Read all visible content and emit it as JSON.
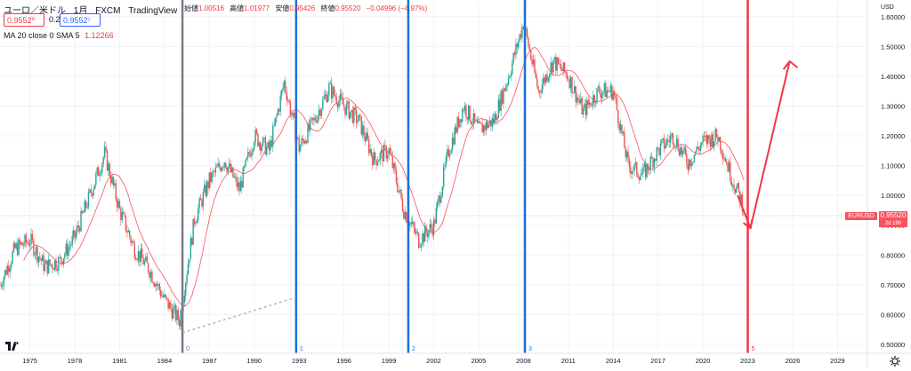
{
  "header": {
    "symbol": "ユーロ／米ドル",
    "interval": "1月",
    "broker": "FXCM",
    "platform": "TradingView",
    "ohlc": [
      {
        "label": "始値",
        "value": "1.00516"
      },
      {
        "label": "高値",
        "value": "1.01977"
      },
      {
        "label": "安値",
        "value": "0.95426"
      },
      {
        "label": "終値",
        "value": "0.95520"
      }
    ],
    "change": "−0.04996 (−4.97%)",
    "sell_price": "0.9552⁰",
    "spread": "0.2",
    "buy_price": "0.9552⁷",
    "indicator_name": "MA 20 close 0 SMA 5",
    "indicator_value": "1.12266"
  },
  "axis": {
    "currency": "USD",
    "y_ticks": [
      "1.60000",
      "1.50000",
      "1.40000",
      "1.30000",
      "1.20000",
      "1.10000",
      "1.00000",
      "0.90000",
      "0.80000",
      "0.70000",
      "0.60000",
      "0.50000"
    ],
    "x_ticks": [
      "1975",
      "1978",
      "1981",
      "1984",
      "1987",
      "1990",
      "1993",
      "1996",
      "1999",
      "2002",
      "2005",
      "2008",
      "2011",
      "2014",
      "2017",
      "2020",
      "2023",
      "2026",
      "2029"
    ]
  },
  "last_price": {
    "symbol": "EURUSD",
    "value": "0.95520",
    "countdown": "2d 19h"
  },
  "markers": [
    {
      "label": "0",
      "year": 1985.2,
      "color": "#787b86"
    },
    {
      "label": "1",
      "year": 1992.8,
      "color": "#1e6fd9"
    },
    {
      "label": "2",
      "year": 2000.3,
      "color": "#1e6fd9"
    },
    {
      "label": "3",
      "year": 2008.1,
      "color": "#1e6fd9"
    },
    {
      "label": "5",
      "year": 2023.0,
      "color": "#f23645"
    }
  ],
  "colors": {
    "up": "#26a69a",
    "down": "#ef5350",
    "ma": "#f7525f",
    "grid": "#f0f3fa",
    "axis_text": "#131722"
  },
  "icons": {
    "logo": "tradingview-logo-icon",
    "settings": "gear-icon"
  },
  "chart_data": {
    "type": "candlestick",
    "x_unit": "year",
    "y_unit": "USD",
    "series": [
      {
        "name": "EURUSD",
        "points": [
          [
            1973.0,
            0.7
          ],
          [
            1974.0,
            0.82
          ],
          [
            1975.0,
            0.85
          ],
          [
            1976.0,
            0.76
          ],
          [
            1977.0,
            0.78
          ],
          [
            1978.0,
            0.86
          ],
          [
            1979.0,
            1.0
          ],
          [
            1980.0,
            1.14
          ],
          [
            1981.0,
            0.95
          ],
          [
            1982.0,
            0.82
          ],
          [
            1983.0,
            0.75
          ],
          [
            1984.0,
            0.65
          ],
          [
            1985.0,
            0.58
          ],
          [
            1986.0,
            0.92
          ],
          [
            1987.0,
            1.05
          ],
          [
            1988.0,
            1.12
          ],
          [
            1989.0,
            1.02
          ],
          [
            1990.0,
            1.2
          ],
          [
            1991.0,
            1.15
          ],
          [
            1992.0,
            1.38
          ],
          [
            1993.0,
            1.16
          ],
          [
            1994.0,
            1.25
          ],
          [
            1995.0,
            1.36
          ],
          [
            1996.0,
            1.3
          ],
          [
            1997.0,
            1.25
          ],
          [
            1998.0,
            1.12
          ],
          [
            1999.0,
            1.15
          ],
          [
            2000.0,
            0.95
          ],
          [
            2001.0,
            0.85
          ],
          [
            2002.0,
            0.9
          ],
          [
            2003.0,
            1.15
          ],
          [
            2004.0,
            1.3
          ],
          [
            2005.0,
            1.22
          ],
          [
            2006.0,
            1.25
          ],
          [
            2007.0,
            1.4
          ],
          [
            2008.0,
            1.58
          ],
          [
            2009.0,
            1.35
          ],
          [
            2010.0,
            1.45
          ],
          [
            2011.0,
            1.4
          ],
          [
            2012.0,
            1.28
          ],
          [
            2013.0,
            1.35
          ],
          [
            2014.0,
            1.35
          ],
          [
            2015.0,
            1.1
          ],
          [
            2016.0,
            1.07
          ],
          [
            2017.0,
            1.15
          ],
          [
            2018.0,
            1.2
          ],
          [
            2019.0,
            1.11
          ],
          [
            2020.0,
            1.18
          ],
          [
            2021.0,
            1.2
          ],
          [
            2022.0,
            1.05
          ],
          [
            2022.8,
            0.955
          ]
        ]
      }
    ],
    "moving_average": {
      "name": "MA 20 close 0 SMA 5",
      "last": 1.12266
    },
    "projection": {
      "down_to": {
        "year": 2023.0,
        "price": 0.89
      },
      "up_to": {
        "year": 2025.8,
        "price": 1.45
      }
    },
    "ylim": [
      0.47,
      1.65
    ],
    "xlim": [
      1973.0,
      2031.0
    ]
  }
}
